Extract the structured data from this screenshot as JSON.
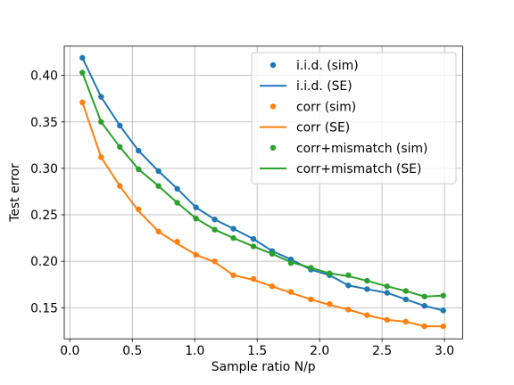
{
  "chart_data": {
    "type": "line",
    "title": "",
    "xlabel": "Sample ratio N/p",
    "ylabel": "Test error",
    "xlim": [
      -0.045,
      3.145
    ],
    "ylim": [
      0.1165,
      0.4315
    ],
    "xticks": [
      0.0,
      0.5,
      1.0,
      1.5,
      2.0,
      2.5,
      3.0
    ],
    "xtick_labels": [
      "0.0",
      "0.5",
      "1.0",
      "1.5",
      "2.0",
      "2.5",
      "3.0"
    ],
    "yticks": [
      0.15,
      0.2,
      0.25,
      0.3,
      0.35,
      0.4
    ],
    "ytick_labels": [
      "0.15",
      "0.20",
      "0.25",
      "0.30",
      "0.35",
      "0.40"
    ],
    "grid": true,
    "legend_position": "top-right",
    "series": [
      {
        "name": "i.i.d. (sim)",
        "kind": "scatter",
        "color": "#1f77b4",
        "x": [
          0.1,
          0.25,
          0.4,
          0.55,
          0.71,
          0.86,
          1.01,
          1.16,
          1.31,
          1.47,
          1.62,
          1.77,
          1.93,
          2.08,
          2.23,
          2.38,
          2.54,
          2.69,
          2.84,
          2.99
        ],
        "y": [
          0.419,
          0.377,
          0.346,
          0.319,
          0.297,
          0.278,
          0.258,
          0.245,
          0.235,
          0.224,
          0.211,
          0.202,
          0.191,
          0.185,
          0.174,
          0.17,
          0.166,
          0.159,
          0.152,
          0.147
        ]
      },
      {
        "name": "i.i.d. (SE)",
        "kind": "line",
        "color": "#1f77b4",
        "x": [
          0.1,
          0.25,
          0.4,
          0.55,
          0.71,
          0.86,
          1.01,
          1.16,
          1.31,
          1.47,
          1.62,
          1.77,
          1.93,
          2.08,
          2.23,
          2.38,
          2.54,
          2.69,
          2.84,
          2.99
        ],
        "y": [
          0.419,
          0.377,
          0.346,
          0.319,
          0.297,
          0.278,
          0.258,
          0.245,
          0.235,
          0.224,
          0.211,
          0.202,
          0.191,
          0.185,
          0.174,
          0.17,
          0.166,
          0.159,
          0.152,
          0.147
        ]
      },
      {
        "name": "corr (sim)",
        "kind": "scatter",
        "color": "#ff7f0e",
        "x": [
          0.1,
          0.25,
          0.4,
          0.55,
          0.71,
          0.86,
          1.01,
          1.16,
          1.31,
          1.47,
          1.62,
          1.77,
          1.93,
          2.08,
          2.23,
          2.38,
          2.54,
          2.69,
          2.84,
          2.99
        ],
        "y": [
          0.371,
          0.312,
          0.281,
          0.256,
          0.232,
          0.221,
          0.207,
          0.2,
          0.185,
          0.181,
          0.173,
          0.167,
          0.159,
          0.154,
          0.148,
          0.142,
          0.137,
          0.135,
          0.13,
          0.13
        ]
      },
      {
        "name": "corr (SE)",
        "kind": "line",
        "color": "#ff7f0e",
        "x": [
          0.1,
          0.25,
          0.4,
          0.55,
          0.71,
          0.86,
          1.01,
          1.16,
          1.31,
          1.47,
          1.62,
          1.77,
          1.93,
          2.08,
          2.23,
          2.38,
          2.54,
          2.69,
          2.84,
          2.99
        ],
        "y": [
          0.371,
          0.312,
          0.281,
          0.254,
          0.232,
          0.219,
          0.207,
          0.199,
          0.185,
          0.18,
          0.173,
          0.166,
          0.159,
          0.153,
          0.148,
          0.142,
          0.137,
          0.135,
          0.13,
          0.13
        ]
      },
      {
        "name": "corr+mismatch (sim)",
        "kind": "scatter",
        "color": "#2ca02c",
        "x": [
          0.1,
          0.25,
          0.4,
          0.55,
          0.71,
          0.86,
          1.01,
          1.16,
          1.31,
          1.47,
          1.62,
          1.77,
          1.93,
          2.08,
          2.23,
          2.38,
          2.54,
          2.69,
          2.84,
          2.99
        ],
        "y": [
          0.403,
          0.35,
          0.323,
          0.299,
          0.281,
          0.263,
          0.246,
          0.234,
          0.225,
          0.216,
          0.208,
          0.198,
          0.193,
          0.187,
          0.185,
          0.179,
          0.173,
          0.168,
          0.162,
          0.163
        ]
      },
      {
        "name": "corr+mismatch (SE)",
        "kind": "line",
        "color": "#2ca02c",
        "x": [
          0.1,
          0.25,
          0.4,
          0.55,
          0.71,
          0.86,
          1.01,
          1.16,
          1.31,
          1.47,
          1.62,
          1.77,
          1.93,
          2.08,
          2.23,
          2.38,
          2.54,
          2.69,
          2.84,
          2.99
        ],
        "y": [
          0.403,
          0.35,
          0.323,
          0.299,
          0.281,
          0.263,
          0.246,
          0.234,
          0.225,
          0.216,
          0.208,
          0.199,
          0.193,
          0.187,
          0.184,
          0.179,
          0.173,
          0.168,
          0.162,
          0.163
        ]
      }
    ]
  }
}
